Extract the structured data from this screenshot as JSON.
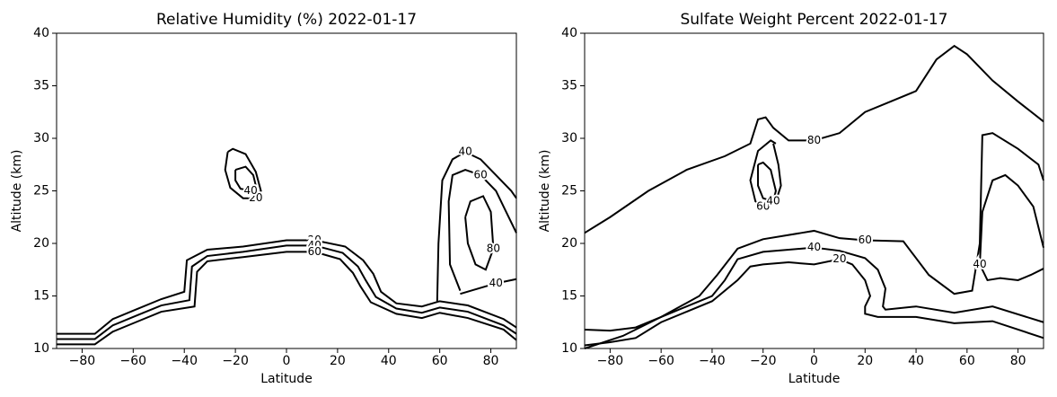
{
  "chart_data": [
    {
      "type": "contour",
      "title": "Relative Humidity (%) 2022-01-17",
      "xlabel": "Latitude",
      "ylabel": "Altitude (km)",
      "color": "#000000",
      "xlim": [
        -90,
        90
      ],
      "ylim": [
        10,
        40
      ],
      "xticks": [
        {
          "value": -80,
          "label": "−80"
        },
        {
          "value": -60,
          "label": "−60"
        },
        {
          "value": -40,
          "label": "−40"
        },
        {
          "value": -20,
          "label": "−20"
        },
        0,
        20,
        40,
        60,
        80
      ],
      "yticks": [
        10,
        15,
        20,
        25,
        30,
        35,
        40
      ],
      "contours": [
        {
          "level": 20,
          "x": [
            -90,
            -75,
            -68,
            -59,
            -49,
            -40,
            -39,
            -31,
            -17,
            0,
            11,
            23,
            30,
            34,
            37,
            43,
            53,
            60,
            71,
            85,
            90
          ],
          "y": [
            11.4,
            11.4,
            12.8,
            13.7,
            14.7,
            15.4,
            18.4,
            19.4,
            19.7,
            20.3,
            20.3,
            19.7,
            18.4,
            17.1,
            15.4,
            14.3,
            14,
            14.5,
            14.1,
            12.8,
            12
          ]
        },
        {
          "level": 40,
          "x": [
            -90,
            -75,
            -68,
            -59,
            -49,
            -38,
            -37,
            -31,
            -17,
            0,
            11,
            22,
            28,
            31,
            35,
            43,
            53,
            60,
            71,
            85,
            90
          ],
          "y": [
            10.9,
            10.9,
            12.2,
            13.1,
            14.1,
            14.6,
            17.8,
            18.8,
            19.2,
            19.8,
            19.8,
            19.1,
            17.8,
            16.5,
            14.9,
            13.8,
            13.4,
            13.9,
            13.5,
            12.2,
            11.4
          ]
        },
        {
          "level": 60,
          "x": [
            -90,
            -75,
            -68,
            -59,
            -49,
            -36,
            -35,
            -31,
            -17,
            0,
            11,
            21,
            26,
            29,
            33,
            43,
            53,
            60,
            71,
            85,
            90
          ],
          "y": [
            10.4,
            10.4,
            11.6,
            12.5,
            13.5,
            14,
            17.3,
            18.3,
            18.7,
            19.2,
            19.2,
            18.5,
            17.2,
            15.9,
            14.4,
            13.3,
            12.9,
            13.4,
            12.9,
            11.8,
            10.8
          ]
        },
        {
          "level": 20,
          "x": [
            -23,
            -21,
            -16,
            -12,
            -10,
            -12,
            -17,
            -22,
            -24,
            -23
          ],
          "y": [
            28.7,
            29,
            28.5,
            26.8,
            25,
            24.3,
            24.3,
            25.3,
            27,
            28.7
          ]
        },
        {
          "level": 40,
          "x": [
            -20,
            -16,
            -13,
            -12,
            -14,
            -18,
            -20,
            -20
          ],
          "y": [
            27,
            27.3,
            26.5,
            25.5,
            25,
            25.2,
            26,
            27
          ]
        },
        {
          "level": 40,
          "x": [
            59,
            59.5,
            61,
            65,
            70,
            76,
            82,
            88,
            90
          ],
          "y": [
            14.5,
            20,
            26,
            28,
            28.7,
            28,
            26.5,
            25,
            24.3
          ]
        },
        {
          "level": 60,
          "x": [
            68,
            64,
            63.5,
            65,
            70,
            76,
            82,
            86,
            89,
            90
          ],
          "y": [
            15.5,
            18,
            24,
            26.5,
            27,
            26.5,
            25,
            23,
            21.5,
            21
          ]
        },
        {
          "level": 80,
          "x": [
            70,
            71,
            74,
            78,
            81,
            80,
            77,
            72,
            70
          ],
          "y": [
            22.5,
            20,
            18,
            17.5,
            19.5,
            23,
            24.5,
            24,
            22.5
          ]
        },
        {
          "level": 40,
          "x": [
            68,
            75,
            82,
            90
          ],
          "y": [
            15.2,
            15.7,
            16.2,
            16.6
          ]
        }
      ]
    },
    {
      "type": "contour",
      "title": "Sulfate Weight Percent 2022-01-17",
      "xlabel": "Latitude",
      "ylabel": "Altitude (km)",
      "color": "#000000",
      "xlim": [
        -90,
        90
      ],
      "ylim": [
        10,
        40
      ],
      "xticks": [
        {
          "value": -80,
          "label": "−80"
        },
        {
          "value": -60,
          "label": "−60"
        },
        {
          "value": -40,
          "label": "−40"
        },
        {
          "value": -20,
          "label": "−20"
        },
        0,
        20,
        40,
        60,
        80
      ],
      "yticks": [
        10,
        15,
        20,
        25,
        30,
        35,
        40
      ],
      "contours": [
        {
          "level": 80,
          "x": [
            -90,
            -80,
            -65,
            -50,
            -35,
            -25,
            -22,
            -19,
            -16,
            -10,
            0,
            10,
            20,
            30,
            40,
            48,
            55,
            60,
            70,
            80,
            90
          ],
          "y": [
            21,
            22.5,
            25,
            27,
            28.3,
            29.5,
            31.8,
            32,
            31,
            29.8,
            29.8,
            30.5,
            32.5,
            33.5,
            34.5,
            37.5,
            38.8,
            38,
            35.5,
            33.5,
            31.6
          ]
        },
        {
          "level": 60,
          "x": [
            -15,
            -17,
            -22,
            -25,
            -23,
            -20,
            -15,
            -13,
            -14,
            -16
          ],
          "y": [
            29.5,
            29.8,
            28.8,
            26,
            24,
            23.5,
            24,
            25.5,
            27.5,
            29.5
          ]
        },
        {
          "level": 40,
          "x": [
            -22,
            -20,
            -17,
            -15,
            -16,
            -20,
            -22,
            -22
          ],
          "y": [
            27.5,
            27.7,
            27,
            25,
            24,
            24.3,
            25.5,
            27.5
          ]
        },
        {
          "level": 60,
          "x": [
            -90,
            -75,
            -60,
            -45,
            -38,
            -30,
            -20,
            -5,
            0,
            10,
            20,
            35,
            45,
            55,
            62,
            65,
            66,
            70,
            80,
            88,
            90
          ],
          "y": [
            10,
            11.2,
            13,
            15,
            17,
            19.5,
            20.4,
            21,
            21.2,
            20.5,
            20.3,
            20.2,
            17,
            15.2,
            15.5,
            20,
            30.3,
            30.5,
            29,
            27.5,
            26
          ]
        },
        {
          "level": 40,
          "x": [
            -90,
            -80,
            -70,
            -60,
            -50,
            -40,
            -35,
            -30,
            -20,
            -10,
            0,
            10,
            20,
            25,
            28,
            27,
            28,
            40,
            55,
            70,
            90
          ],
          "y": [
            11.8,
            11.7,
            12,
            13,
            14,
            15,
            16.5,
            18.5,
            19.2,
            19.4,
            19.6,
            19.3,
            18.6,
            17.5,
            15.7,
            14,
            13.7,
            14,
            13.4,
            14,
            12.5
          ]
        },
        {
          "level": 20,
          "x": [
            -90,
            -80,
            -70,
            -60,
            -50,
            -40,
            -30,
            -25,
            -20,
            -10,
            0,
            10,
            15,
            20,
            22,
            20,
            20,
            25,
            40,
            55,
            70,
            90
          ],
          "y": [
            10.3,
            10.6,
            11,
            12.5,
            13.5,
            14.5,
            16.5,
            17.8,
            18,
            18.2,
            18,
            18.5,
            18,
            16.5,
            15,
            14,
            13.3,
            13,
            13,
            12.4,
            12.6,
            11
          ]
        },
        {
          "level": 40,
          "x": [
            90,
            86,
            80,
            75,
            70,
            66,
            65,
            68,
            73,
            80,
            85,
            90
          ],
          "y": [
            19.6,
            23.5,
            25.5,
            26.5,
            26,
            23,
            18,
            16.5,
            16.7,
            16.5,
            17,
            17.6
          ]
        }
      ]
    }
  ]
}
